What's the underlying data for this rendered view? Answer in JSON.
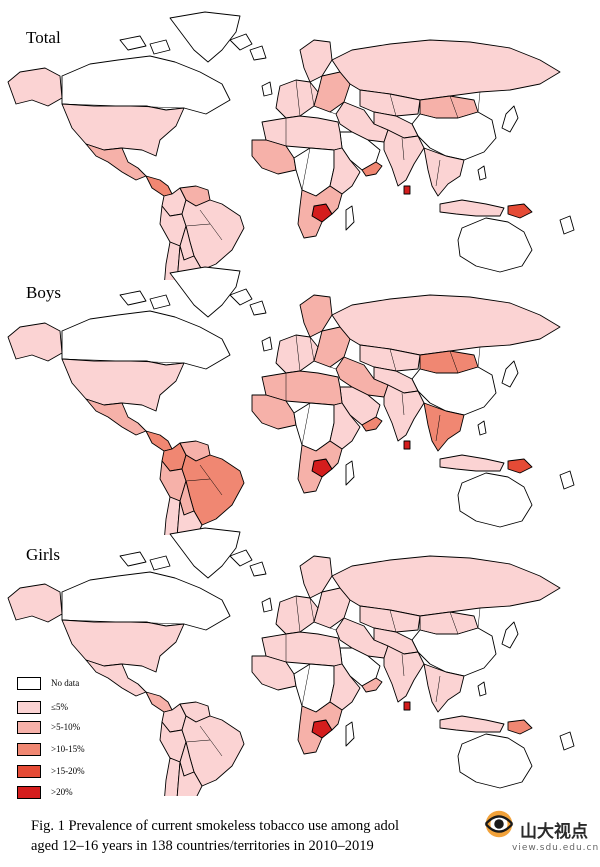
{
  "colors": {
    "no_data": "#ffffff",
    "c1": "#fbd3d3",
    "c2": "#f6b1a9",
    "c3": "#f08772",
    "c4": "#e54b36",
    "c5": "#d41d1d"
  },
  "panels": [
    {
      "title": "Total",
      "region_levels": {
        "canada": 0,
        "alaska": 1,
        "usa": 1,
        "mexico": 2,
        "central_am": 3,
        "venezuela": 2,
        "colombia": 1,
        "brazil": 1,
        "peru": 1,
        "bolivia": 1,
        "argentina": 1,
        "chile": 1,
        "greenland": 0,
        "w_europe": 1,
        "scandinavia": 1,
        "e_europe": 2,
        "russia": 1,
        "north_africa": 1,
        "west_africa": 2,
        "central_africa": 0,
        "east_africa": 1,
        "zimbabwe": 5,
        "south_africa": 2,
        "madagascar": 0,
        "middle_east": 1,
        "arabia": 0,
        "yemen": 3,
        "central_asia": 1,
        "kazakhstan": 1,
        "mongolia": 2,
        "china": 0,
        "india": 1,
        "sri_lanka": 5,
        "se_asia": 1,
        "indonesia": 1,
        "png": 4,
        "japan": 0,
        "australia": 0
      }
    },
    {
      "title": "Boys",
      "region_levels": {
        "canada": 0,
        "alaska": 1,
        "usa": 1,
        "mexico": 2,
        "central_am": 3,
        "venezuela": 2,
        "colombia": 3,
        "brazil": 3,
        "peru": 2,
        "bolivia": 2,
        "argentina": 1,
        "chile": 1,
        "greenland": 0,
        "w_europe": 1,
        "scandinavia": 2,
        "e_europe": 2,
        "russia": 1,
        "north_africa": 2,
        "west_africa": 2,
        "central_africa": 0,
        "east_africa": 1,
        "zimbabwe": 5,
        "south_africa": 2,
        "madagascar": 0,
        "middle_east": 2,
        "arabia": 1,
        "yemen": 3,
        "central_asia": 1,
        "kazakhstan": 1,
        "mongolia": 3,
        "china": 0,
        "india": 1,
        "sri_lanka": 5,
        "se_asia": 3,
        "indonesia": 1,
        "png": 4,
        "japan": 0,
        "australia": 0
      }
    },
    {
      "title": "Girls",
      "region_levels": {
        "canada": 0,
        "alaska": 1,
        "usa": 1,
        "mexico": 1,
        "central_am": 2,
        "venezuela": 1,
        "colombia": 1,
        "brazil": 1,
        "peru": 1,
        "bolivia": 1,
        "argentina": 1,
        "chile": 1,
        "greenland": 0,
        "w_europe": 1,
        "scandinavia": 1,
        "e_europe": 1,
        "russia": 1,
        "north_africa": 1,
        "west_africa": 1,
        "central_africa": 0,
        "east_africa": 1,
        "zimbabwe": 5,
        "south_africa": 2,
        "madagascar": 0,
        "middle_east": 1,
        "arabia": 0,
        "yemen": 2,
        "central_asia": 1,
        "kazakhstan": 1,
        "mongolia": 1,
        "china": 0,
        "india": 1,
        "sri_lanka": 5,
        "se_asia": 1,
        "indonesia": 1,
        "png": 3,
        "japan": 0,
        "australia": 0
      }
    }
  ],
  "legend": [
    {
      "label": "No data",
      "color": "#ffffff"
    },
    {
      "label": "≤5%",
      "color": "#fbd3d3"
    },
    {
      "label": ">5-10%",
      "color": "#f6b1a9"
    },
    {
      "label": ">10-15%",
      "color": "#f08772"
    },
    {
      "label": ">15-20%",
      "color": "#e54b36"
    },
    {
      "label": ">20%",
      "color": "#d41d1d"
    }
  ],
  "caption": {
    "line1": "Fig. 1 Prevalence of current smokeless tobacco use among adol",
    "line2": "aged 12–16 years in 138 countries/territories in 2010–2019"
  },
  "watermark": {
    "text": "山大视点",
    "url": "view.sdu.edu.cn",
    "icon": "sdu-logo-icon"
  }
}
